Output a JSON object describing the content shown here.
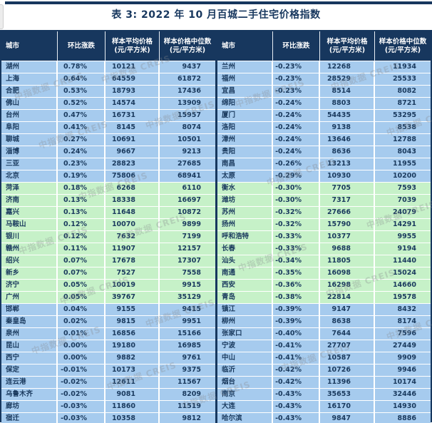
{
  "page": {
    "title": "表 3: 2022 年 10 月百城二手住宅价格指数"
  },
  "colors": {
    "header_bg": "#17375e",
    "band_blue": "#a6cbee",
    "band_green": "#c6f1c8",
    "text": "#1a3a5e",
    "border": "#17375e"
  },
  "watermark": {
    "text": "中指数据 CREIS"
  },
  "table": {
    "headers": [
      {
        "label": "城市",
        "sub": ""
      },
      {
        "label": "环比涨跌",
        "sub": ""
      },
      {
        "label": "样本平均价格",
        "sub": "(元/平方米)"
      },
      {
        "label": "样本价格中位数",
        "sub": "(元/平方米)"
      }
    ],
    "left": {
      "rows": [
        [
          "湖州",
          "0.78%",
          10121,
          9437
        ],
        [
          "上海",
          "0.64%",
          64559,
          61872
        ],
        [
          "合肥",
          "0.53%",
          18793,
          17436
        ],
        [
          "佛山",
          "0.52%",
          14574,
          13909
        ],
        [
          "台州",
          "0.47%",
          16731,
          15957
        ],
        [
          "阜阳",
          "0.41%",
          8145,
          8074
        ],
        [
          "聊城",
          "0.27%",
          10691,
          10501
        ],
        [
          "淄博",
          "0.24%",
          9667,
          9213
        ],
        [
          "三亚",
          "0.23%",
          28823,
          27685
        ],
        [
          "北京",
          "0.19%",
          75806,
          68941
        ],
        [
          "菏泽",
          "0.18%",
          6268,
          6110
        ],
        [
          "济南",
          "0.13%",
          18338,
          16697
        ],
        [
          "嘉兴",
          "0.13%",
          11648,
          10872
        ],
        [
          "马鞍山",
          "0.12%",
          10070,
          9899
        ],
        [
          "银川",
          "0.12%",
          7632,
          7199
        ],
        [
          "赣州",
          "0.11%",
          11907,
          12157
        ],
        [
          "绍兴",
          "0.07%",
          17678,
          17307
        ],
        [
          "新乡",
          "0.07%",
          7527,
          7558
        ],
        [
          "济宁",
          "0.05%",
          10019,
          9915
        ],
        [
          "广州",
          "0.05%",
          39767,
          35129
        ],
        [
          "邯郸",
          "0.04%",
          9155,
          9415
        ],
        [
          "秦皇岛",
          "0.02%",
          9815,
          9951
        ],
        [
          "泉州",
          "0.01%",
          16856,
          15166
        ],
        [
          "昆山",
          "0.00%",
          19180,
          16985
        ],
        [
          "西宁",
          "0.00%",
          9882,
          9761
        ],
        [
          "保定",
          "-0.01%",
          10173,
          9375
        ],
        [
          "连云港",
          "-0.02%",
          12611,
          11567
        ],
        [
          "乌鲁木齐",
          "-0.02%",
          9081,
          8209
        ],
        [
          "廊坊",
          "-0.03%",
          11860,
          11519
        ],
        [
          "宿迁",
          "-0.03%",
          10358,
          9812
        ]
      ]
    },
    "right": {
      "rows": [
        [
          "兰州",
          "-0.23%",
          12268,
          11934
        ],
        [
          "福州",
          "-0.23%",
          28529,
          25533
        ],
        [
          "宜昌",
          "-0.23%",
          8514,
          8082
        ],
        [
          "绵阳",
          "-0.24%",
          8803,
          8721
        ],
        [
          "厦门",
          "-0.24%",
          54435,
          53295
        ],
        [
          "洛阳",
          "-0.24%",
          9138,
          8538
        ],
        [
          "漳州",
          "-0.24%",
          13646,
          12788
        ],
        [
          "贵阳",
          "-0.24%",
          8636,
          8043
        ],
        [
          "南昌",
          "-0.26%",
          13213,
          11955
        ],
        [
          "太原",
          "-0.29%",
          10930,
          10200
        ],
        [
          "衡水",
          "-0.30%",
          7705,
          7593
        ],
        [
          "潍坊",
          "-0.30%",
          7317,
          7039
        ],
        [
          "苏州",
          "-0.32%",
          27666,
          24079
        ],
        [
          "扬州",
          "-0.32%",
          15790,
          14291
        ],
        [
          "呼和浩特",
          "-0.33%",
          10377,
          9955
        ],
        [
          "长春",
          "-0.33%",
          9688,
          9194
        ],
        [
          "汕头",
          "-0.34%",
          11805,
          11440
        ],
        [
          "南通",
          "-0.35%",
          16098,
          15024
        ],
        [
          "西安",
          "-0.36%",
          16298,
          14660
        ],
        [
          "青岛",
          "-0.38%",
          22814,
          19578
        ],
        [
          "镇江",
          "-0.39%",
          9147,
          8432
        ],
        [
          "柳州",
          "-0.39%",
          8638,
          8174
        ],
        [
          "张家口",
          "-0.40%",
          7644,
          7596
        ],
        [
          "宁波",
          "-0.41%",
          27707,
          27449
        ],
        [
          "中山",
          "-0.41%",
          10587,
          9909
        ],
        [
          "临沂",
          "-0.42%",
          10726,
          9946
        ],
        [
          "烟台",
          "-0.42%",
          11396,
          10174
        ],
        [
          "南京",
          "-0.43%",
          35653,
          32446
        ],
        [
          "大连",
          "-0.43%",
          16170,
          14930
        ],
        [
          "哈尔滨",
          "-0.43%",
          9847,
          8886
        ]
      ]
    }
  }
}
